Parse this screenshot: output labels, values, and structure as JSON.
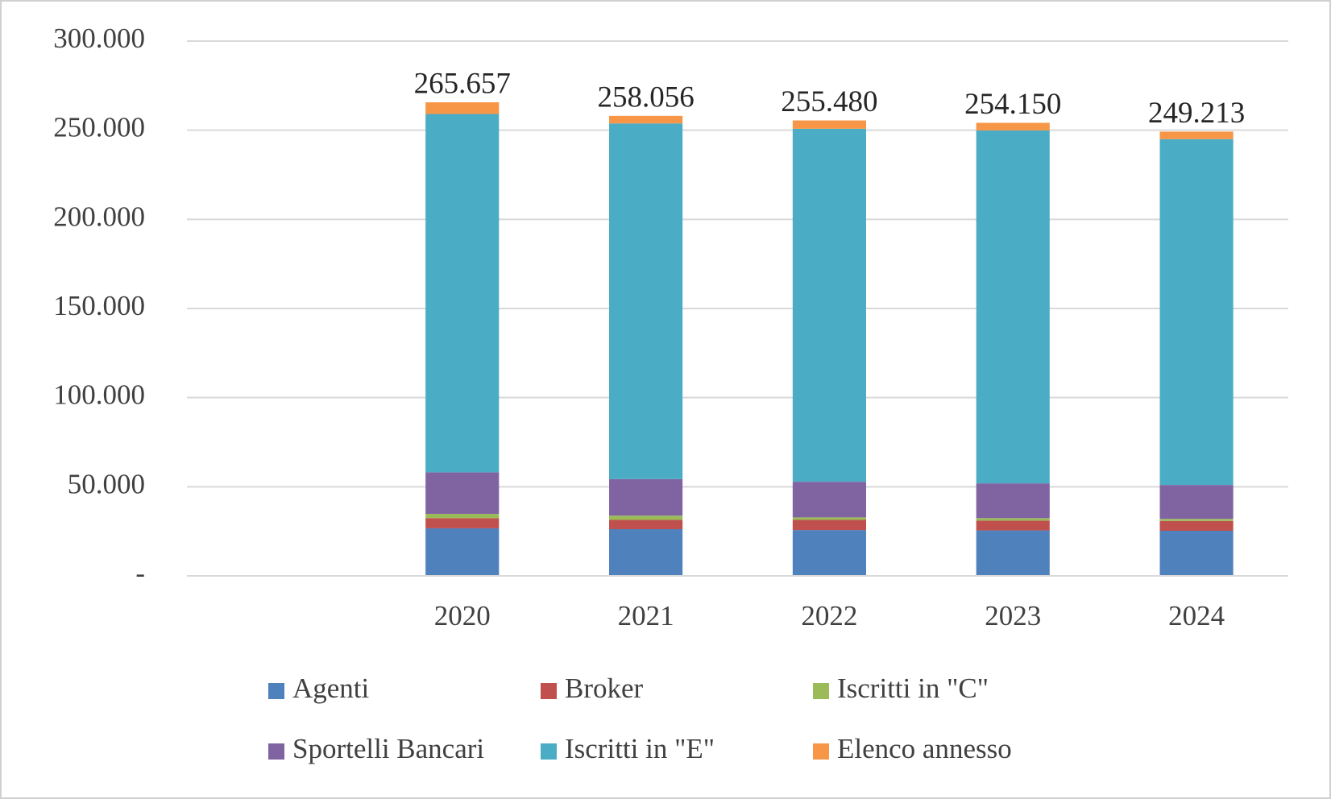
{
  "chart_data": {
    "type": "stacked_bar",
    "categories": [
      null,
      "2020",
      "2021",
      "2022",
      "2023",
      "2024"
    ],
    "series": [
      {
        "name": "Agenti",
        "color": "#4f81bd",
        "values": [
          null,
          26700,
          26200,
          25700,
          25500,
          25300
        ]
      },
      {
        "name": "Broker",
        "color": "#c0504d",
        "values": [
          null,
          5700,
          5200,
          5700,
          5500,
          5500
        ]
      },
      {
        "name": "Iscritti in \"C\"",
        "color": "#9bbb59",
        "values": [
          null,
          2400,
          2400,
          1400,
          1400,
          1200
        ]
      },
      {
        "name": "Sportelli Bancari",
        "color": "#8064a2",
        "values": [
          null,
          23300,
          20500,
          20000,
          19500,
          19000
        ]
      },
      {
        "name": "Iscritti in \"E\"",
        "color": "#4bacc6",
        "values": [
          null,
          201000,
          199500,
          198000,
          198000,
          194000
        ]
      },
      {
        "name": "Elenco annesso",
        "color": "#f79646",
        "values": [
          null,
          6557,
          4256,
          4680,
          4250,
          4213
        ]
      }
    ],
    "totals": {
      "values": [
        null,
        265657,
        258056,
        255480,
        254150,
        249213
      ],
      "value_labels": [
        null,
        "265.657",
        "258.056",
        "255.480",
        "254.150",
        "249.213"
      ]
    },
    "ylim": [
      0,
      300000
    ],
    "yticks": [
      {
        "value": 0,
        "label": "-"
      },
      {
        "value": 50000,
        "label": "50.000"
      },
      {
        "value": 100000,
        "label": "100.000"
      },
      {
        "value": 150000,
        "label": "150.000"
      },
      {
        "value": 200000,
        "label": "200.000"
      },
      {
        "value": 250000,
        "label": "250.000"
      },
      {
        "value": 300000,
        "label": "300.000"
      }
    ],
    "grid": true,
    "legend": "bottom"
  }
}
